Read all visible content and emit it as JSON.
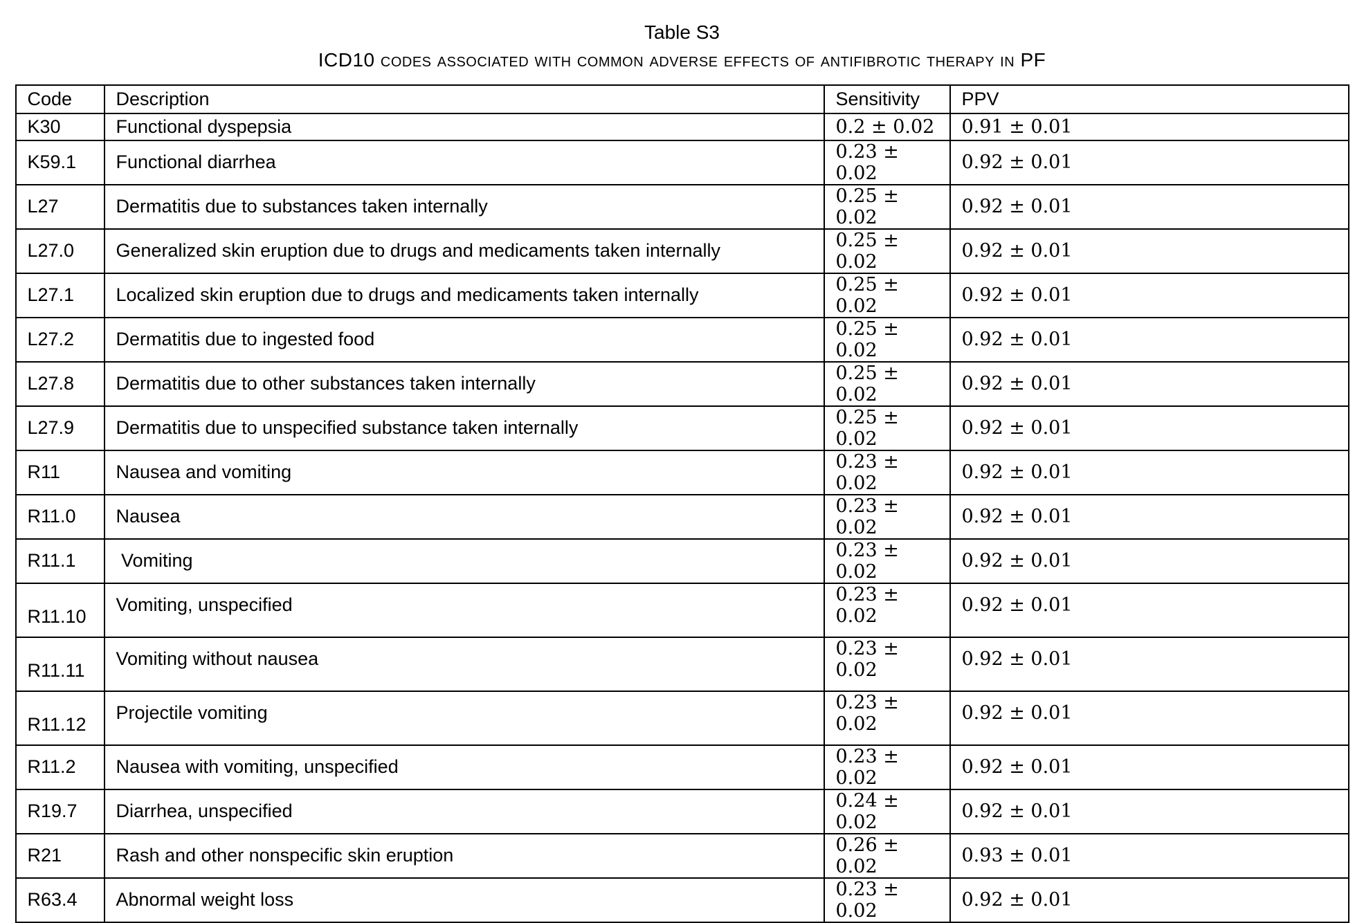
{
  "caption": {
    "title": "Table S3",
    "subtitle": "ICD10 codes associated with common adverse effects of antifibrotic therapy in PF"
  },
  "table": {
    "columns": [
      "Code",
      "Description",
      "Sensitivity",
      "PPV"
    ],
    "rows": [
      {
        "code": "K30",
        "description": "Functional dyspepsia",
        "sensitivity": "0.2 ± 0.02",
        "ppv": "0.91 ± 0.01"
      },
      {
        "code": "K59.1",
        "description": "Functional diarrhea",
        "sensitivity": "0.23 ± 0.02",
        "ppv": "0.92 ± 0.01"
      },
      {
        "code": "L27",
        "description": "Dermatitis due to substances taken internally",
        "sensitivity": "0.25 ± 0.02",
        "ppv": "0.92 ± 0.01"
      },
      {
        "code": "L27.0",
        "description": "Generalized skin eruption due to drugs and medicaments taken internally",
        "sensitivity": "0.25 ± 0.02",
        "ppv": "0.92 ± 0.01"
      },
      {
        "code": "L27.1",
        "description": "Localized skin eruption due to drugs and medicaments taken internally",
        "sensitivity": "0.25 ± 0.02",
        "ppv": "0.92 ± 0.01"
      },
      {
        "code": "L27.2",
        "description": "Dermatitis due to ingested food",
        "sensitivity": "0.25 ± 0.02",
        "ppv": "0.92 ± 0.01"
      },
      {
        "code": "L27.8",
        "description": "Dermatitis due to other substances taken internally",
        "sensitivity": "0.25 ± 0.02",
        "ppv": "0.92 ± 0.01"
      },
      {
        "code": "L27.9",
        "description": "Dermatitis due to unspecified substance taken internally",
        "sensitivity": "0.25 ± 0.02",
        "ppv": "0.92 ± 0.01"
      },
      {
        "code": "R11",
        "description": "Nausea and vomiting",
        "sensitivity": "0.23 ± 0.02",
        "ppv": "0.92 ± 0.01"
      },
      {
        "code": "R11.0",
        "description": "Nausea",
        "sensitivity": "0.23 ± 0.02",
        "ppv": "0.92 ± 0.01"
      },
      {
        "code": "R11.1",
        "description": " Vomiting",
        "sensitivity": "0.23 ± 0.02",
        "ppv": "0.92 ± 0.01"
      },
      {
        "code": "R11.10",
        "description": "Vomiting, unspecified",
        "sensitivity": "0.23 ± 0.02",
        "ppv": "0.92 ± 0.01",
        "tall": true
      },
      {
        "code": "R11.11",
        "description": "Vomiting without nausea",
        "sensitivity": "0.23 ± 0.02",
        "ppv": "0.92 ± 0.01",
        "tall": true
      },
      {
        "code": "R11.12",
        "description": "Projectile vomiting",
        "sensitivity": "0.23 ± 0.02",
        "ppv": "0.92 ± 0.01",
        "tall": true
      },
      {
        "code": "R11.2",
        "description": "Nausea with vomiting, unspecified",
        "sensitivity": "0.23 ± 0.02",
        "ppv": "0.92 ± 0.01"
      },
      {
        "code": "R19.7",
        "description": "Diarrhea, unspecified",
        "sensitivity": "0.24 ± 0.02",
        "ppv": "0.92 ± 0.01"
      },
      {
        "code": "R21",
        "description": "Rash and other nonspecific skin eruption",
        "sensitivity": "0.26 ± 0.02",
        "ppv": "0.93 ± 0.01"
      },
      {
        "code": "R63.4",
        "description": "Abnormal weight loss",
        "sensitivity": "0.23 ± 0.02",
        "ppv": "0.92 ± 0.01"
      }
    ]
  }
}
